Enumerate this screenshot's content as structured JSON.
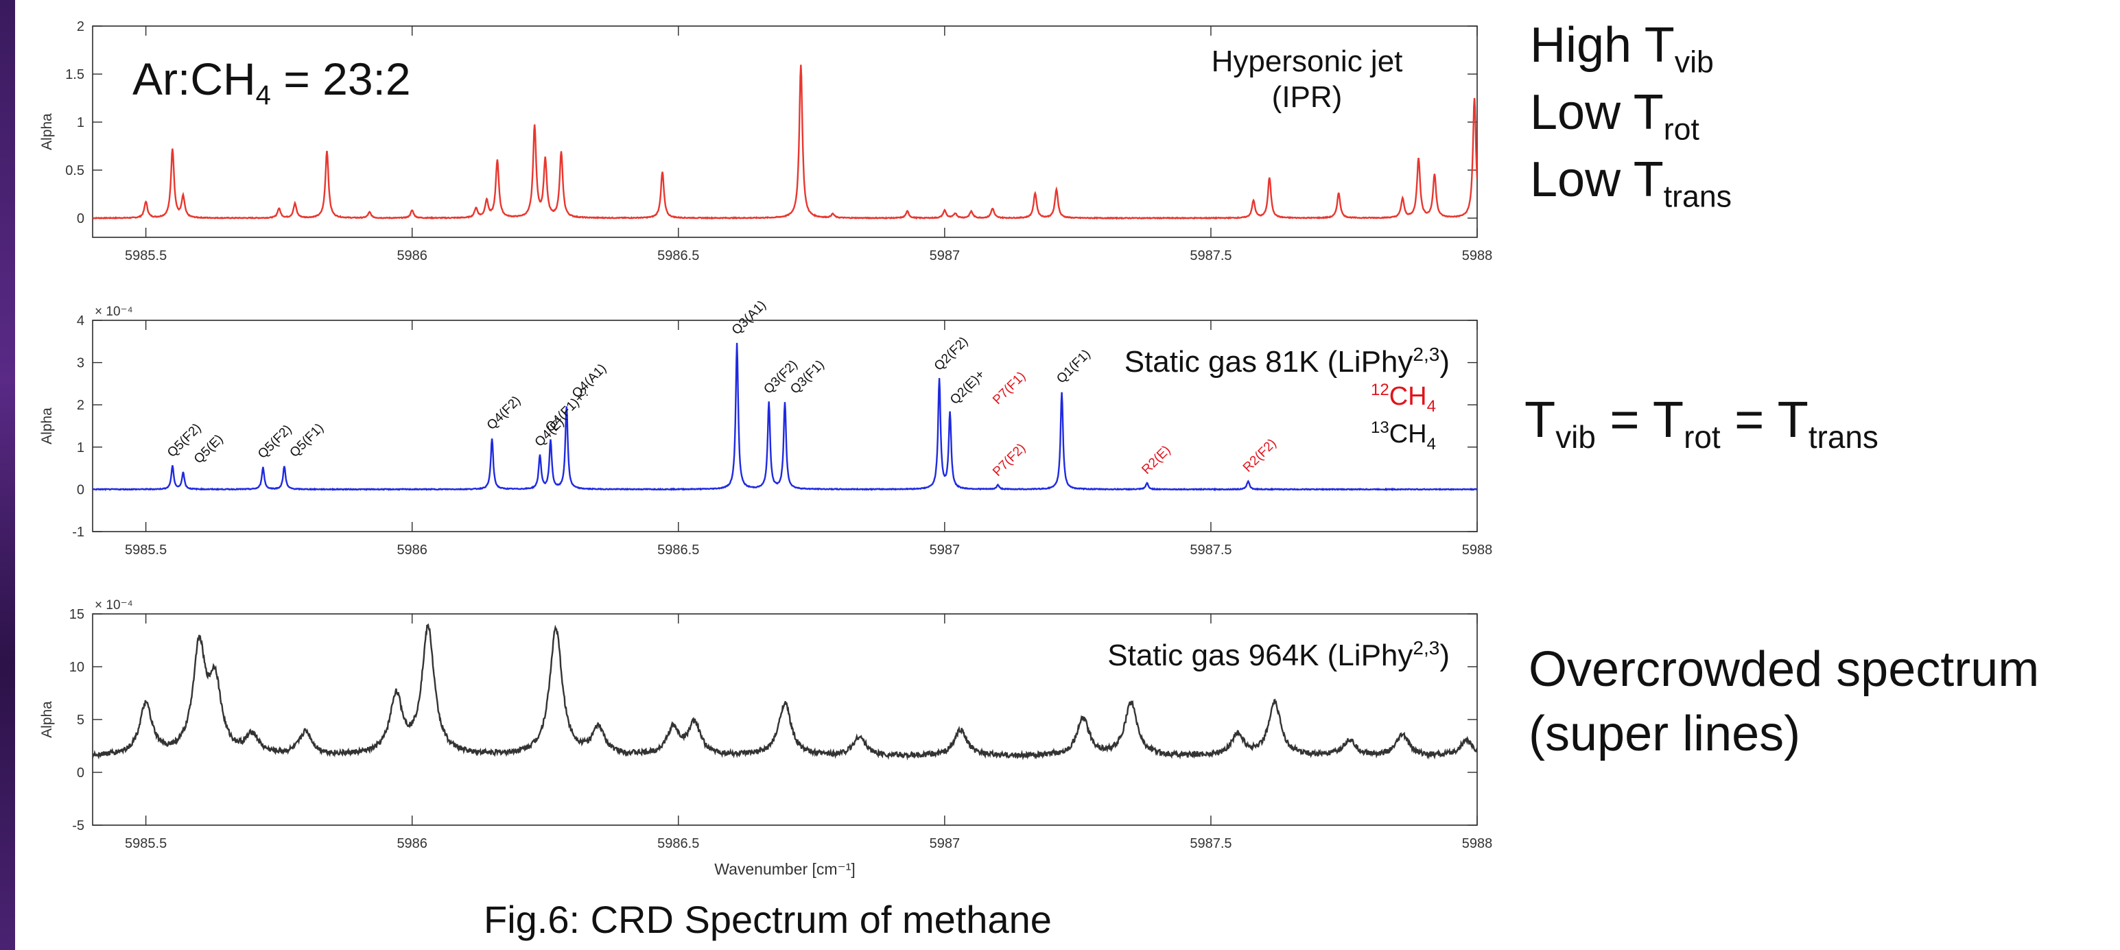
{
  "caption": "Fig.6: CRD Spectrum of methane",
  "xlabel": "Wavenumber [cm⁻¹]",
  "sidebar": {
    "conditions_jet": [
      {
        "main": "High T",
        "sub": "vib"
      },
      {
        "main": "Low T",
        "sub": "rot"
      },
      {
        "main": "Low T",
        "sub": "trans"
      }
    ],
    "equilibrium": {
      "parts": [
        "T",
        "vib",
        " = T",
        "rot",
        " = T",
        "trans"
      ]
    },
    "overcrowded": [
      "Overcrowded spectrum",
      "(super lines)"
    ]
  },
  "colors": {
    "jet": "#e8372f",
    "cold": "#1f2ae0",
    "hot": "#333333",
    "red_label": "#e0141b",
    "band": "#3a1a5e"
  },
  "chart_data": [
    {
      "type": "line",
      "title": "Hypersonic jet (IPR)",
      "title_lines": [
        "Hypersonic jet",
        "(IPR)"
      ],
      "annotation": {
        "main": "Ar:CH",
        "sub": "4",
        "tail": " = 23:2"
      },
      "ylabel": "Alpha",
      "xlim": [
        5985.4,
        5988
      ],
      "ylim": [
        -0.2,
        2
      ],
      "xticks": [
        5985.5,
        5986,
        5986.5,
        5987,
        5987.5,
        5988
      ],
      "xtick_labels": [
        "5985.5",
        "5986",
        "5986.5",
        "5987",
        "5987.5",
        "5988"
      ],
      "yticks": [
        0,
        0.5,
        1,
        1.5,
        2
      ],
      "ytick_labels": [
        "0",
        "0.5",
        "1",
        "1.5",
        "2"
      ],
      "multiplier": "",
      "baseline": 0,
      "line_width": 0.0035,
      "peaks": [
        [
          5985.5,
          0.17
        ],
        [
          5985.55,
          0.72
        ],
        [
          5985.57,
          0.22
        ],
        [
          5985.75,
          0.1
        ],
        [
          5985.78,
          0.15
        ],
        [
          5985.84,
          0.7
        ],
        [
          5985.92,
          0.06
        ],
        [
          5986.0,
          0.08
        ],
        [
          5986.12,
          0.1
        ],
        [
          5986.14,
          0.18
        ],
        [
          5986.16,
          0.6
        ],
        [
          5986.23,
          0.95
        ],
        [
          5986.25,
          0.6
        ],
        [
          5986.28,
          0.68
        ],
        [
          5986.47,
          0.48
        ],
        [
          5986.73,
          1.6
        ],
        [
          5986.79,
          0.04
        ],
        [
          5986.93,
          0.07
        ],
        [
          5987.0,
          0.08
        ],
        [
          5987.02,
          0.05
        ],
        [
          5987.05,
          0.07
        ],
        [
          5987.09,
          0.1
        ],
        [
          5987.17,
          0.26
        ],
        [
          5987.21,
          0.3
        ],
        [
          5987.58,
          0.18
        ],
        [
          5987.61,
          0.42
        ],
        [
          5987.74,
          0.26
        ],
        [
          5987.86,
          0.2
        ],
        [
          5987.89,
          0.62
        ],
        [
          5987.92,
          0.45
        ],
        [
          5987.995,
          1.25
        ]
      ]
    },
    {
      "type": "line",
      "title": "Static gas 81K (LiPhy2,3)",
      "title_parts": [
        "Static gas 81K (LiPhy",
        "2,3",
        ")"
      ],
      "ylabel": "Alpha",
      "xlim": [
        5985.4,
        5988
      ],
      "ylim": [
        -1,
        4
      ],
      "xticks": [
        5985.5,
        5986,
        5986.5,
        5987,
        5987.5,
        5988
      ],
      "xtick_labels": [
        "5985.5",
        "5986",
        "5986.5",
        "5987",
        "5987.5",
        "5988"
      ],
      "yticks": [
        -1,
        0,
        1,
        2,
        3,
        4
      ],
      "ytick_labels": [
        "-1",
        "0",
        "1",
        "2",
        "3",
        "4"
      ],
      "multiplier": "× 10⁻⁴",
      "baseline": 0,
      "line_width": 0.0028,
      "legend": [
        {
          "sup": "12",
          "label": "CH",
          "sub": "4",
          "color": "#e0141b"
        },
        {
          "sup": "13",
          "label": "CH",
          "sub": "4",
          "color": "#111111"
        }
      ],
      "peaks": [
        [
          5985.55,
          0.55
        ],
        [
          5985.57,
          0.4
        ],
        [
          5985.72,
          0.52
        ],
        [
          5985.76,
          0.55
        ],
        [
          5986.15,
          1.2
        ],
        [
          5986.24,
          0.8
        ],
        [
          5986.26,
          1.15
        ],
        [
          5986.29,
          1.95
        ],
        [
          5986.61,
          3.45
        ],
        [
          5986.67,
          2.05
        ],
        [
          5986.7,
          2.05
        ],
        [
          5986.99,
          2.6
        ],
        [
          5987.01,
          1.8
        ],
        [
          5987.1,
          0.1
        ],
        [
          5987.22,
          2.3
        ],
        [
          5987.38,
          0.15
        ],
        [
          5987.57,
          0.2
        ]
      ],
      "peak_labels": [
        {
          "x": 5985.55,
          "y": 0.55,
          "label": "Q5(F2)",
          "color": "#111111"
        },
        {
          "x": 5985.6,
          "y": 0.4,
          "label": "Q5(E)",
          "color": "#111111"
        },
        {
          "x": 5985.72,
          "y": 0.52,
          "label": "Q5(F2)",
          "color": "#111111"
        },
        {
          "x": 5985.78,
          "y": 0.55,
          "label": "Q5(F1)",
          "color": "#111111"
        },
        {
          "x": 5986.15,
          "y": 1.2,
          "label": "Q4(F2)",
          "color": "#111111"
        },
        {
          "x": 5986.24,
          "y": 0.8,
          "label": "Q4(E)",
          "color": "#111111"
        },
        {
          "x": 5986.26,
          "y": 1.15,
          "label": "Q4(F1)+?",
          "color": "#111111"
        },
        {
          "x": 5986.31,
          "y": 1.95,
          "label": "Q4(A1)",
          "color": "#111111"
        },
        {
          "x": 5986.61,
          "y": 3.45,
          "label": "Q3(A1)",
          "color": "#111111"
        },
        {
          "x": 5986.67,
          "y": 2.05,
          "label": "Q3(F2)",
          "color": "#111111"
        },
        {
          "x": 5986.72,
          "y": 2.05,
          "label": "Q3(F1)",
          "color": "#111111"
        },
        {
          "x": 5986.99,
          "y": 2.6,
          "label": "Q2(F2)",
          "color": "#111111"
        },
        {
          "x": 5987.02,
          "y": 1.8,
          "label": "Q2(E)+",
          "color": "#111111"
        },
        {
          "x": 5987.1,
          "y": 1.8,
          "label": "P7(F1)",
          "color": "#e0141b"
        },
        {
          "x": 5987.1,
          "y": 0.1,
          "label": "P7(F2)",
          "color": "#e0141b"
        },
        {
          "x": 5987.22,
          "y": 2.3,
          "label": "Q1(F1)",
          "color": "#111111"
        },
        {
          "x": 5987.38,
          "y": 0.15,
          "label": "R2(E)",
          "color": "#e0141b"
        },
        {
          "x": 5987.57,
          "y": 0.2,
          "label": "R2(F2)",
          "color": "#e0141b"
        }
      ]
    },
    {
      "type": "line",
      "title": "Static gas 964K (LiPhy2,3)",
      "title_parts": [
        "Static gas 964K (LiPhy",
        "2,3",
        ")"
      ],
      "ylabel": "Alpha",
      "xlabel": "Wavenumber [cm⁻¹]",
      "xlim": [
        5985.4,
        5988
      ],
      "ylim": [
        -5,
        15
      ],
      "xticks": [
        5985.5,
        5986,
        5986.5,
        5987,
        5987.5,
        5988
      ],
      "xtick_labels": [
        "5985.5",
        "5986",
        "5986.5",
        "5987",
        "5987.5",
        "5988"
      ],
      "yticks": [
        -5,
        0,
        5,
        10,
        15
      ],
      "ytick_labels": [
        "-5",
        "0",
        "5",
        "10",
        "15"
      ],
      "multiplier": "× 10⁻⁴",
      "baseline": 1.5,
      "line_width": 0.014,
      "peaks": [
        [
          5985.5,
          4.8
        ],
        [
          5985.6,
          10
        ],
        [
          5985.63,
          6.5
        ],
        [
          5985.7,
          1.8
        ],
        [
          5985.8,
          2.2
        ],
        [
          5985.97,
          5.5
        ],
        [
          5986.03,
          12
        ],
        [
          5986.27,
          12
        ],
        [
          5986.35,
          2.5
        ],
        [
          5986.49,
          2.5
        ],
        [
          5986.53,
          3
        ],
        [
          5986.7,
          5
        ],
        [
          5986.84,
          1.8
        ],
        [
          5987.03,
          2.5
        ],
        [
          5987.26,
          3.5
        ],
        [
          5987.35,
          5
        ],
        [
          5987.55,
          2
        ],
        [
          5987.62,
          5
        ],
        [
          5987.76,
          1.5
        ],
        [
          5987.86,
          2
        ],
        [
          5987.98,
          1.5
        ]
      ],
      "noise": 0.5
    }
  ]
}
